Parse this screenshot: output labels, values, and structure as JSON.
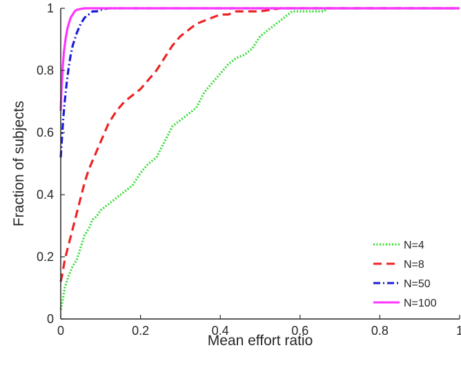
{
  "chart_data": {
    "type": "line",
    "title": "",
    "xlabel": "Mean effort ratio",
    "ylabel": "Fraction of subjects",
    "xlim": [
      0,
      1
    ],
    "ylim": [
      0,
      1
    ],
    "xticks": [
      {
        "value": 0,
        "label": "0"
      },
      {
        "value": 0.2,
        "label": "0.2"
      },
      {
        "value": 0.4,
        "label": "0.4"
      },
      {
        "value": 0.6,
        "label": "0.6"
      },
      {
        "value": 0.8,
        "label": "0.8"
      },
      {
        "value": 1,
        "label": "1"
      }
    ],
    "yticks": [
      {
        "value": 0,
        "label": "0"
      },
      {
        "value": 0.2,
        "label": "0.2"
      },
      {
        "value": 0.4,
        "label": "0.4"
      },
      {
        "value": 0.6,
        "label": "0.6"
      },
      {
        "value": 0.8,
        "label": "0.8"
      },
      {
        "value": 1,
        "label": "1"
      }
    ],
    "grid": false,
    "legend": "bottom-right",
    "series": [
      {
        "name": "N=4",
        "color": "#33dd33",
        "style": "dotted",
        "x": [
          0,
          0.005,
          0.01,
          0.02,
          0.03,
          0.04,
          0.05,
          0.06,
          0.07,
          0.08,
          0.09,
          0.1,
          0.12,
          0.14,
          0.16,
          0.18,
          0.2,
          0.22,
          0.24,
          0.26,
          0.28,
          0.3,
          0.32,
          0.34,
          0.36,
          0.38,
          0.4,
          0.42,
          0.44,
          0.46,
          0.48,
          0.5,
          0.52,
          0.54,
          0.56,
          0.58,
          0.6,
          0.62,
          0.64,
          0.66,
          0.667,
          1.0
        ],
        "y": [
          0.03,
          0.06,
          0.1,
          0.14,
          0.17,
          0.19,
          0.23,
          0.27,
          0.29,
          0.32,
          0.33,
          0.35,
          0.37,
          0.39,
          0.41,
          0.43,
          0.47,
          0.5,
          0.52,
          0.57,
          0.62,
          0.64,
          0.66,
          0.68,
          0.73,
          0.76,
          0.79,
          0.82,
          0.84,
          0.85,
          0.87,
          0.91,
          0.93,
          0.95,
          0.97,
          0.99,
          0.99,
          0.99,
          0.99,
          0.99,
          1.0,
          1.0
        ]
      },
      {
        "name": "N=8",
        "color": "#ee2222",
        "style": "dashed",
        "x": [
          0,
          0.005,
          0.01,
          0.02,
          0.03,
          0.04,
          0.05,
          0.06,
          0.07,
          0.08,
          0.1,
          0.12,
          0.14,
          0.16,
          0.18,
          0.2,
          0.22,
          0.24,
          0.26,
          0.28,
          0.3,
          0.32,
          0.34,
          0.36,
          0.38,
          0.4,
          0.42,
          0.44,
          0.46,
          0.48,
          0.5,
          0.55,
          0.6,
          1.0
        ],
        "y": [
          0.12,
          0.15,
          0.19,
          0.24,
          0.29,
          0.34,
          0.39,
          0.44,
          0.48,
          0.51,
          0.57,
          0.63,
          0.67,
          0.7,
          0.72,
          0.74,
          0.77,
          0.8,
          0.84,
          0.88,
          0.91,
          0.93,
          0.95,
          0.96,
          0.97,
          0.98,
          0.98,
          0.99,
          0.99,
          0.99,
          0.99,
          1.0,
          1.0,
          1.0
        ]
      },
      {
        "name": "N=50",
        "color": "#1a1adc",
        "style": "dashdot",
        "x": [
          0,
          0.003,
          0.006,
          0.01,
          0.015,
          0.02,
          0.025,
          0.03,
          0.04,
          0.05,
          0.06,
          0.07,
          0.08,
          0.09,
          0.1,
          0.11,
          0.12,
          0.13,
          0.15,
          1.0
        ],
        "y": [
          0.52,
          0.58,
          0.64,
          0.7,
          0.76,
          0.81,
          0.85,
          0.88,
          0.92,
          0.95,
          0.97,
          0.98,
          0.99,
          0.99,
          0.995,
          0.998,
          1.0,
          1.0,
          1.0,
          1.0
        ]
      },
      {
        "name": "N=100",
        "color": "#ff33ff",
        "style": "solid",
        "x": [
          0,
          0.002,
          0.005,
          0.008,
          0.012,
          0.016,
          0.02,
          0.025,
          0.03,
          0.035,
          0.04,
          0.05,
          0.06,
          0.08,
          1.0
        ],
        "y": [
          0.67,
          0.74,
          0.81,
          0.86,
          0.9,
          0.93,
          0.95,
          0.97,
          0.98,
          0.99,
          0.995,
          0.998,
          1.0,
          1.0,
          1.0
        ]
      }
    ]
  }
}
